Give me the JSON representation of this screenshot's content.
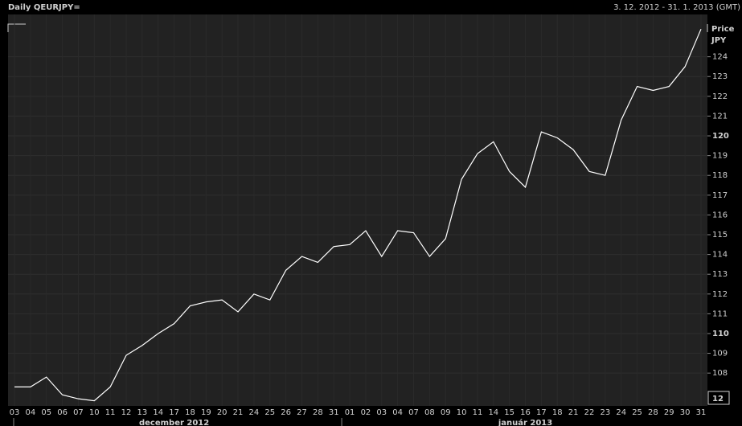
{
  "chart_data": {
    "type": "line",
    "title": "Daily QEURJPY=",
    "subtitle": "3. 12. 2012 - 31. 1. 2013 (GMT)",
    "y_label": "Price",
    "y_unit": "JPY",
    "categories": [
      "03",
      "04",
      "05",
      "06",
      "07",
      "10",
      "11",
      "12",
      "13",
      "14",
      "17",
      "18",
      "19",
      "20",
      "21",
      "24",
      "25",
      "26",
      "27",
      "28",
      "31",
      "01",
      "02",
      "03",
      "04",
      "07",
      "08",
      "09",
      "10",
      "11",
      "14",
      "15",
      "16",
      "17",
      "18",
      "21",
      "22",
      "23",
      "24",
      "25",
      "28",
      "29",
      "30",
      "31"
    ],
    "months": [
      "december 2012",
      "január 2013"
    ],
    "series": [
      {
        "name": "QEURJPY=",
        "color": "#ffffff",
        "values": [
          107.3,
          107.3,
          107.8,
          106.9,
          106.7,
          106.6,
          107.3,
          108.9,
          109.4,
          110.0,
          110.5,
          111.4,
          111.6,
          111.7,
          111.1,
          112.0,
          111.7,
          113.2,
          113.9,
          113.6,
          114.4,
          114.5,
          115.2,
          113.9,
          115.2,
          115.1,
          113.9,
          114.8,
          117.8,
          119.1,
          119.7,
          118.2,
          117.4,
          120.2,
          119.9,
          119.3,
          118.2,
          118.0,
          120.8,
          122.5,
          122.3,
          122.5,
          123.5,
          125.4
        ]
      }
    ],
    "ylim": [
      106.34,
      126.14
    ],
    "yticks": [
      108,
      109,
      110,
      111,
      112,
      113,
      114,
      115,
      116,
      117,
      118,
      119,
      120,
      121,
      122,
      123,
      124
    ],
    "bold_yticks": [
      110,
      120
    ],
    "last_label": "12",
    "grid": true
  }
}
